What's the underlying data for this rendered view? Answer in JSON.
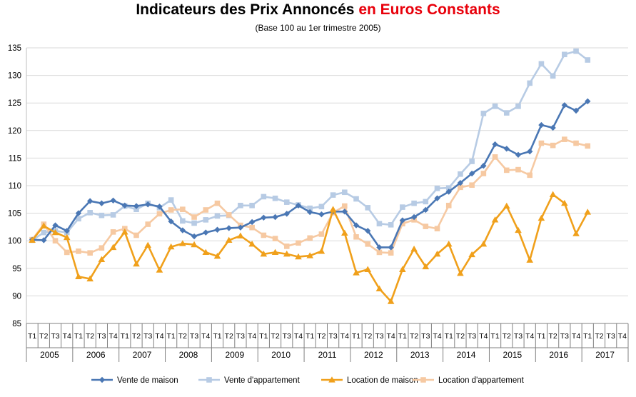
{
  "chart_data": {
    "type": "line",
    "title_part1": "Indicateurs des Prix Annoncés",
    "title_part2": "en Euros Constants",
    "subtitle": "(Base 100 au 1er trimestre 2005)",
    "ylim": [
      85,
      135
    ],
    "yticks": [
      85,
      90,
      95,
      100,
      105,
      110,
      115,
      120,
      125,
      130,
      135
    ],
    "quarter_labels": [
      "T1",
      "T2",
      "T3",
      "T4"
    ],
    "years": [
      "2005",
      "2006",
      "2007",
      "2008",
      "2009",
      "2010",
      "2011",
      "2012",
      "2013",
      "2014",
      "2015",
      "2016",
      "2017"
    ],
    "grid": "horizontal",
    "legend_position": "bottom",
    "colors": {
      "title_accent": "#e8000b"
    },
    "series": [
      {
        "name": "Vente de maison",
        "color": "#4a77b4",
        "marker": "diamond",
        "values": [
          100.2,
          100.1,
          102.8,
          101.8,
          105.0,
          107.2,
          106.8,
          107.3,
          106.4,
          106.3,
          106.6,
          106.2,
          103.5,
          101.9,
          100.8,
          101.5,
          102.0,
          102.3,
          102.4,
          103.4,
          104.2,
          104.3,
          104.9,
          106.4,
          105.2,
          104.8,
          105.3,
          105.3,
          102.8,
          101.8,
          98.8,
          98.8,
          103.7,
          104.3,
          105.6,
          107.7,
          108.9,
          110.5,
          112.2,
          113.6,
          117.5,
          116.7,
          115.6,
          116.2,
          121.0,
          120.5,
          124.6,
          123.6,
          125.3
        ]
      },
      {
        "name": "Vente d'appartement",
        "color": "#b7cbe4",
        "marker": "square",
        "values": [
          100.1,
          101.5,
          101.8,
          101.5,
          104.0,
          105.1,
          104.6,
          104.7,
          106.3,
          105.7,
          106.8,
          106.0,
          107.4,
          103.6,
          103.2,
          103.8,
          104.5,
          104.6,
          106.4,
          106.4,
          108.0,
          107.7,
          107.0,
          106.5,
          105.9,
          106.2,
          108.3,
          108.8,
          107.6,
          106.0,
          103.1,
          102.9,
          106.1,
          106.8,
          107.1,
          109.5,
          109.6,
          112.1,
          114.4,
          123.1,
          124.4,
          123.2,
          124.4,
          128.6,
          132.1,
          129.9,
          133.8,
          134.4,
          132.8
        ]
      },
      {
        "name": "Location de maison",
        "color": "#f0a01b",
        "marker": "triangle",
        "values": [
          100.1,
          102.7,
          101.5,
          100.6,
          93.5,
          93.1,
          96.6,
          98.8,
          101.6,
          95.8,
          99.2,
          94.7,
          98.9,
          99.5,
          99.3,
          97.9,
          97.2,
          100.1,
          100.9,
          99.4,
          97.6,
          97.9,
          97.6,
          97.1,
          97.3,
          98.1,
          105.7,
          101.4,
          94.2,
          94.8,
          91.3,
          89.0,
          94.8,
          98.5,
          95.3,
          97.6,
          99.4,
          94.1,
          97.5,
          99.4,
          103.8,
          106.3,
          101.9,
          96.5,
          104.1,
          108.4,
          106.8,
          101.3,
          105.2
        ]
      },
      {
        "name": "Location d'appartement",
        "color": "#f6c9a2",
        "marker": "square",
        "values": [
          100.2,
          103.0,
          100.0,
          97.9,
          98.1,
          97.8,
          98.7,
          101.6,
          102.2,
          101.0,
          103.0,
          104.9,
          105.6,
          105.7,
          104.3,
          105.6,
          106.8,
          104.7,
          102.8,
          102.4,
          101.0,
          100.4,
          99.0,
          99.6,
          100.5,
          101.2,
          105.1,
          106.3,
          100.7,
          99.4,
          97.9,
          97.8,
          103.1,
          103.8,
          102.6,
          102.2,
          106.4,
          109.7,
          110.1,
          112.2,
          115.2,
          112.8,
          112.9,
          111.9,
          117.7,
          117.3,
          118.4,
          117.7,
          117.2
        ]
      }
    ]
  }
}
